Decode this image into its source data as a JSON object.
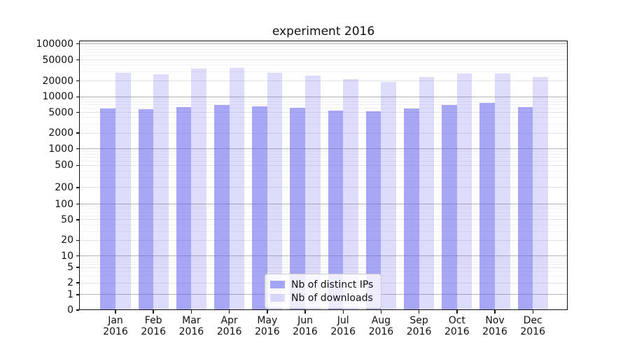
{
  "title": "experiment 2016",
  "chart_data": {
    "type": "bar",
    "title": "experiment 2016",
    "categories": [
      "Jan 2016",
      "Feb 2016",
      "Mar 2016",
      "Apr 2016",
      "May 2016",
      "Jun 2016",
      "Jul 2016",
      "Aug 2016",
      "Sep 2016",
      "Oct 2016",
      "Nov 2016",
      "Dec 2016"
    ],
    "series": [
      {
        "name": "Nb of distinct IPs",
        "color": "#5f5fee",
        "alpha": 0.55,
        "values": [
          5900,
          5700,
          6300,
          6900,
          6500,
          6200,
          5500,
          5300,
          5900,
          7000,
          7700,
          6400
        ]
      },
      {
        "name": "Nb of downloads",
        "color": "#5f5fee",
        "alpha": 0.21,
        "values": [
          28500,
          26500,
          34000,
          35500,
          28500,
          25500,
          21500,
          19000,
          24000,
          28000,
          28000,
          24000
        ]
      }
    ],
    "yscale": "symlog",
    "ylim": [
      0,
      100000
    ],
    "y_ticks": [
      0,
      1,
      2,
      5,
      10,
      20,
      50,
      100,
      200,
      500,
      1000,
      2000,
      5000,
      10000,
      20000,
      50000,
      100000
    ],
    "grid": true,
    "legend_position": "lower center"
  }
}
